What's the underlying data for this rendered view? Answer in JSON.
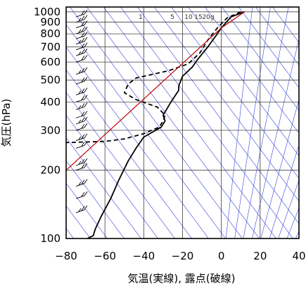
{
  "chart_data": {
    "type": "line",
    "xlabel": "気温(実線), 露点(破線)",
    "ylabel": "気圧(hPa)",
    "x_axis": {
      "range": [
        -80,
        40
      ],
      "ticks": [
        -80,
        -60,
        -40,
        -20,
        0,
        20,
        40
      ],
      "tick_labels": [
        "−80",
        "−60",
        "−40",
        "−20",
        "0",
        "20",
        "40"
      ]
    },
    "y_axis": {
      "scale": "log",
      "range": [
        1050,
        100
      ],
      "ticks": [
        100,
        200,
        300,
        400,
        500,
        600,
        700,
        800,
        900,
        1000
      ],
      "tick_labels": [
        "100",
        "200",
        "300",
        "400",
        "500",
        "600",
        "700",
        "800",
        "900",
        "1000"
      ]
    },
    "grid": true,
    "mixing_ratio_labels": [
      "1",
      "5",
      "10",
      "15",
      "20g"
    ],
    "series": [
      {
        "role": "temperature",
        "style": "solid",
        "color": "#000000",
        "points": [
          [
            12,
            1000
          ],
          [
            5,
            950
          ],
          [
            0,
            850
          ],
          [
            -3,
            780
          ],
          [
            -7,
            700
          ],
          [
            -12,
            620
          ],
          [
            -15,
            570
          ],
          [
            -20,
            520
          ],
          [
            -22,
            470
          ],
          [
            -22,
            450
          ],
          [
            -26,
            400
          ],
          [
            -30,
            350
          ],
          [
            -29,
            330
          ],
          [
            -31,
            310
          ],
          [
            -40,
            280
          ],
          [
            -44,
            250
          ],
          [
            -48,
            220
          ],
          [
            -53,
            180
          ],
          [
            -57,
            150
          ],
          [
            -62,
            125
          ],
          [
            -65,
            110
          ],
          [
            -66,
            103
          ],
          [
            -69,
            100
          ]
        ]
      },
      {
        "role": "dewpoint",
        "style": "dashed",
        "color": "#000000",
        "points": [
          [
            10,
            1000
          ],
          [
            3,
            940
          ],
          [
            -2,
            850
          ],
          [
            -7,
            750
          ],
          [
            -11,
            660
          ],
          [
            -17,
            590
          ],
          [
            -27,
            550
          ],
          [
            -44,
            510
          ],
          [
            -48,
            480
          ],
          [
            -50,
            440
          ],
          [
            -44,
            410
          ],
          [
            -33,
            380
          ],
          [
            -29,
            350
          ],
          [
            -30,
            330
          ],
          [
            -32,
            310
          ],
          [
            -40,
            290
          ],
          [
            -50,
            275
          ],
          [
            -60,
            268
          ],
          [
            -80,
            265
          ]
        ]
      },
      {
        "role": "parcel-path",
        "style": "solid",
        "color": "#c00000",
        "points": [
          [
            12,
            1000
          ],
          [
            0,
            850
          ],
          [
            -80,
            200
          ]
        ]
      }
    ],
    "wind_barbs": {
      "levels_hpa": [
        130,
        150,
        170,
        200,
        210,
        250,
        270,
        300,
        320,
        340,
        370,
        400,
        430,
        480,
        530,
        600,
        640,
        680,
        720,
        760,
        800,
        850,
        900,
        950
      ]
    }
  }
}
